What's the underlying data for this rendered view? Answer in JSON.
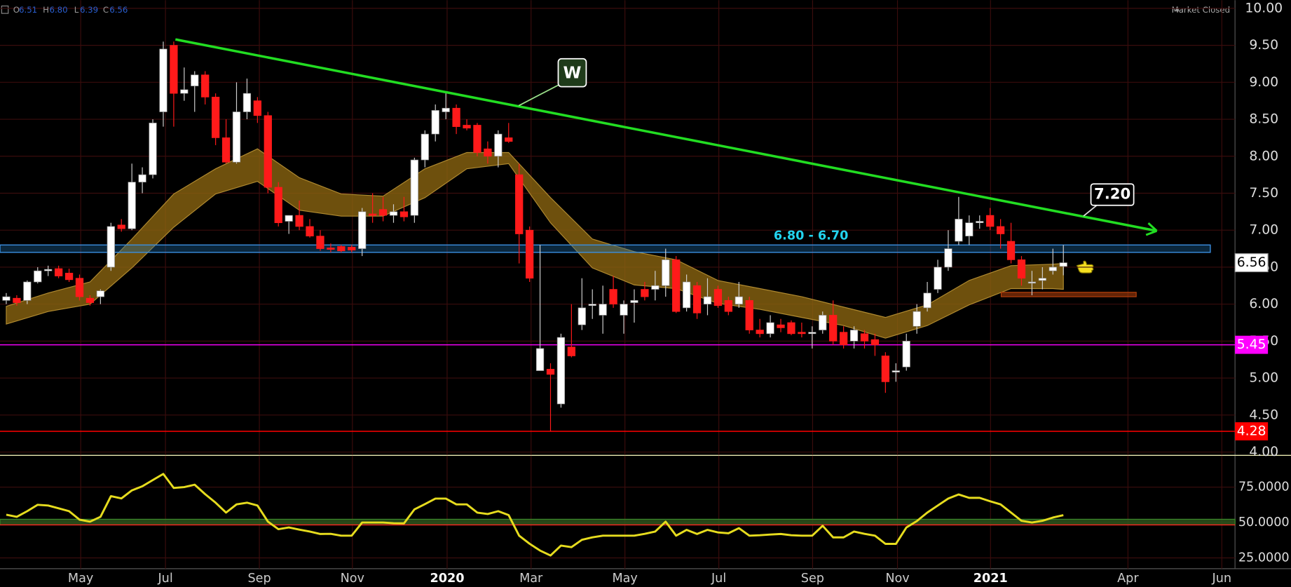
{
  "status": "Market Closed",
  "ohlc_legend": [
    {
      "key": "O",
      "value": "6.51"
    },
    {
      "key": "H",
      "value": "6.80"
    },
    {
      "key": "L",
      "value": "6.39"
    },
    {
      "key": "C",
      "value": "6.56"
    }
  ],
  "chart_data": [
    {
      "type": "candlestick",
      "open": [
        6.05,
        6.08,
        6.05,
        6.3,
        6.45,
        6.48,
        6.42,
        6.35,
        6.08,
        6.1,
        6.5,
        7.07,
        7.02,
        7.65,
        7.75,
        8.6,
        9.5,
        8.85,
        8.95,
        9.1,
        8.8,
        8.25,
        7.92,
        8.6,
        8.75,
        8.55,
        7.58,
        7.12,
        7.2,
        7.05,
        6.92,
        6.76,
        6.78,
        6.77,
        6.75,
        7.22,
        7.28,
        7.2,
        7.25,
        7.2,
        7.95,
        8.3,
        8.6,
        8.65,
        8.42,
        8.42,
        8.1,
        8.0,
        8.25,
        7.75,
        7.0,
        5.1,
        5.12,
        4.65,
        5.42,
        5.72,
        5.98,
        5.85,
        6.2,
        5.85,
        6.02,
        6.2,
        6.2,
        6.25,
        6.6,
        5.95,
        6.25,
        6.0,
        6.2,
        6.05,
        6.0,
        6.05,
        5.65,
        5.6,
        5.72,
        5.75,
        5.62,
        5.6,
        5.65,
        5.85,
        5.62,
        5.5,
        5.6,
        5.52,
        5.3,
        5.08,
        5.15,
        5.7,
        5.95,
        6.2,
        6.5,
        6.85,
        6.92,
        7.1,
        7.2,
        7.05,
        6.85,
        6.6,
        6.3,
        6.32,
        6.45,
        6.51
      ],
      "high": [
        6.15,
        6.12,
        6.32,
        6.5,
        6.52,
        6.52,
        6.48,
        6.4,
        6.12,
        6.2,
        7.1,
        7.15,
        7.9,
        7.85,
        8.5,
        9.55,
        9.55,
        9.2,
        9.15,
        9.15,
        8.85,
        8.5,
        9.0,
        9.05,
        8.8,
        8.6,
        7.65,
        7.2,
        7.4,
        7.15,
        7.0,
        6.82,
        6.8,
        6.8,
        7.3,
        7.5,
        7.45,
        7.35,
        7.45,
        7.98,
        8.35,
        8.7,
        8.85,
        8.7,
        8.5,
        8.45,
        8.2,
        8.35,
        8.45,
        7.9,
        7.05,
        6.8,
        5.2,
        5.6,
        6.0,
        6.35,
        6.2,
        6.25,
        6.38,
        6.05,
        6.2,
        6.3,
        6.45,
        6.75,
        6.65,
        6.4,
        6.3,
        6.35,
        6.25,
        6.1,
        6.3,
        6.1,
        5.8,
        5.85,
        5.8,
        5.78,
        5.75,
        5.7,
        5.9,
        6.05,
        5.7,
        5.7,
        5.65,
        5.6,
        5.35,
        5.2,
        5.6,
        6.0,
        6.3,
        6.6,
        7.0,
        7.45,
        7.2,
        7.2,
        7.3,
        7.15,
        7.1,
        6.65,
        6.45,
        6.5,
        6.75,
        6.8
      ],
      "low": [
        6.0,
        5.98,
        6.0,
        6.28,
        6.38,
        6.35,
        6.3,
        6.05,
        5.98,
        6.0,
        6.45,
        6.98,
        7.0,
        7.5,
        7.7,
        8.4,
        8.4,
        8.75,
        8.6,
        8.7,
        8.15,
        7.9,
        7.9,
        8.5,
        8.45,
        7.5,
        7.05,
        6.95,
        7.0,
        6.9,
        6.72,
        6.7,
        6.7,
        6.7,
        6.65,
        7.1,
        7.12,
        7.1,
        7.12,
        7.1,
        7.85,
        8.2,
        8.5,
        8.3,
        8.35,
        8.0,
        7.9,
        7.85,
        8.18,
        6.55,
        6.3,
        5.1,
        4.28,
        4.6,
        5.28,
        5.65,
        5.8,
        5.6,
        5.95,
        5.6,
        5.75,
        6.05,
        6.05,
        6.1,
        5.88,
        5.9,
        5.8,
        5.85,
        5.95,
        5.85,
        5.95,
        5.6,
        5.55,
        5.55,
        5.62,
        5.58,
        5.55,
        5.4,
        5.6,
        5.45,
        5.4,
        5.4,
        5.4,
        5.3,
        4.8,
        4.95,
        5.1,
        5.6,
        5.9,
        6.15,
        6.45,
        6.8,
        6.8,
        7.02,
        7.0,
        6.75,
        6.55,
        6.25,
        6.12,
        6.2,
        6.4,
        6.39
      ],
      "close": [
        6.1,
        6.02,
        6.3,
        6.45,
        6.47,
        6.38,
        6.33,
        6.1,
        6.02,
        6.18,
        7.05,
        7.02,
        7.65,
        7.75,
        8.45,
        9.45,
        8.85,
        8.9,
        9.1,
        8.8,
        8.25,
        7.92,
        8.6,
        8.85,
        8.55,
        7.58,
        7.1,
        7.2,
        7.05,
        6.92,
        6.75,
        6.74,
        6.72,
        6.73,
        7.25,
        7.2,
        7.2,
        7.25,
        7.18,
        7.95,
        8.3,
        8.62,
        8.65,
        8.4,
        8.38,
        8.05,
        8.0,
        8.3,
        8.2,
        6.95,
        6.35,
        5.4,
        5.05,
        5.55,
        5.3,
        5.95,
        6.0,
        6.0,
        6.0,
        6.0,
        6.05,
        6.1,
        6.25,
        6.6,
        5.9,
        6.3,
        5.88,
        6.1,
        5.98,
        5.9,
        6.1,
        5.65,
        5.6,
        5.75,
        5.68,
        5.6,
        5.6,
        5.62,
        5.85,
        5.5,
        5.45,
        5.65,
        5.5,
        5.45,
        4.95,
        5.1,
        5.5,
        5.9,
        6.15,
        6.5,
        6.75,
        7.15,
        7.1,
        7.12,
        7.05,
        6.95,
        6.6,
        6.35,
        6.3,
        6.35,
        6.5,
        6.56
      ],
      "up_color": "#ffffff",
      "down_color": "#ff1a1a",
      "xlim": [
        -0.6,
        117.4
      ],
      "xticks": [
        {
          "value": 7.11,
          "label": "May"
        },
        {
          "value": 15.21,
          "label": "Jul"
        },
        {
          "value": 24.18,
          "label": "Sep"
        },
        {
          "value": 33.07,
          "label": "Nov"
        },
        {
          "value": 42.12,
          "label": "2020"
        },
        {
          "value": 50.14,
          "label": "Mar"
        },
        {
          "value": 59.11,
          "label": "May"
        },
        {
          "value": 68.08,
          "label": "Jul"
        },
        {
          "value": 77.04,
          "label": "Sep"
        },
        {
          "value": 85.15,
          "label": "Nov"
        },
        {
          "value": 94.04,
          "label": "2021"
        },
        {
          "value": 107.17,
          "label": "Apr"
        },
        {
          "value": 116.14,
          "label": "Jun"
        }
      ],
      "ylim": [
        3.96,
        10.11
      ],
      "yticks": [
        {
          "value": 4,
          "label": "4.00"
        },
        {
          "value": 4.5,
          "label": "4.50"
        },
        {
          "value": 5,
          "label": "5.00"
        },
        {
          "value": 5.5,
          "label": "5.50"
        },
        {
          "value": 6,
          "label": "6.00"
        },
        {
          "value": 6.5,
          "label": "6.50"
        },
        {
          "value": 7,
          "label": "7.00"
        },
        {
          "value": 7.5,
          "label": "7.50"
        },
        {
          "value": 8,
          "label": "8.00"
        },
        {
          "value": 8.5,
          "label": "8.50"
        },
        {
          "value": 9,
          "label": "9.00"
        },
        {
          "value": 9.5,
          "label": "9.50"
        },
        {
          "value": 10,
          "label": "10.00"
        }
      ],
      "grid": true,
      "grid_color": "#3a0c0c",
      "band": {
        "x": [
          0,
          4,
          8,
          12,
          16,
          20,
          24,
          28,
          32,
          36,
          40,
          44,
          48,
          52,
          56,
          60,
          64,
          68,
          72,
          76,
          80,
          84,
          88,
          92,
          96,
          100,
          101
        ],
        "upper": [
          5.97,
          6.15,
          6.3,
          6.88,
          7.49,
          7.83,
          8.1,
          7.71,
          7.49,
          7.46,
          7.83,
          8.05,
          8.05,
          7.44,
          6.88,
          6.71,
          6.6,
          6.32,
          6.21,
          6.1,
          5.96,
          5.82,
          5.99,
          6.32,
          6.52,
          6.54,
          6.55
        ],
        "lower": [
          5.73,
          5.9,
          6.0,
          6.49,
          7.04,
          7.49,
          7.66,
          7.27,
          7.19,
          7.19,
          7.44,
          7.83,
          7.9,
          7.1,
          6.49,
          6.26,
          6.21,
          6.01,
          5.93,
          5.82,
          5.71,
          5.54,
          5.71,
          5.99,
          6.21,
          6.21,
          6.2
        ],
        "color": "#8a6410"
      },
      "hlines": [
        {
          "value": 5.45,
          "color": "#ff00ff"
        },
        {
          "value": 4.28,
          "color": "#ff0000"
        }
      ],
      "last_price": 6.56,
      "zone": {
        "label": "6.80 - 6.70",
        "ylim": [
          6.7,
          6.8
        ],
        "xlim": [
          -0.6,
          115.04
        ],
        "color": "#1e6fb0",
        "label_color": "#22d3ee"
      },
      "support_box": {
        "ylim": [
          6.1,
          6.16
        ],
        "xlim": [
          95.06,
          107.96
        ],
        "color": "#b5400b"
      },
      "trendline": {
        "x": [
          16.16,
          109.93
        ],
        "y": [
          9.58,
          6.99
        ],
        "color": "#22dd22"
      },
      "callouts": [
        "W",
        "7.20"
      ]
    },
    {
      "type": "line",
      "values": [
        55.5,
        54,
        58,
        62.5,
        62,
        60,
        58,
        52,
        50.6,
        54,
        68.6,
        67,
        72.7,
        75.6,
        80,
        84.3,
        74.4,
        75,
        76.7,
        70,
        64,
        57,
        62.8,
        64,
        62,
        50.6,
        45.3,
        46.5,
        45,
        43.6,
        41.9,
        42,
        40.7,
        40.7,
        50,
        50,
        50,
        49.5,
        49.4,
        59.3,
        63,
        66.9,
        66.9,
        62.8,
        62.8,
        57,
        56,
        58,
        55.2,
        40.7,
        35,
        30.2,
        26.7,
        33.7,
        32.6,
        37.8,
        39.5,
        40.7,
        40.7,
        40.7,
        40.7,
        42,
        43.6,
        50.6,
        40.7,
        44.8,
        41.9,
        44.8,
        43,
        42.4,
        46,
        40.7,
        41,
        41.5,
        41.9,
        41,
        40.7,
        40.7,
        47.7,
        39.5,
        39.5,
        43.6,
        42,
        40.7,
        34.9,
        34.9,
        46.5,
        51,
        57,
        62,
        66.9,
        69.8,
        67.4,
        67.4,
        65,
        62.8,
        57,
        51.2,
        50,
        51.2,
        53.5,
        55.2
      ],
      "color": "#e6dc1e",
      "xlim": [
        -0.6,
        117.4
      ],
      "ylim": [
        17.4,
        97.1
      ],
      "yticks": [
        {
          "value": 25,
          "label": "25.0000"
        },
        {
          "value": 50,
          "label": "50.0000"
        },
        {
          "value": 75,
          "label": "75.0000"
        }
      ],
      "grid": true,
      "grid_color": "#3a0c0c",
      "bands": [
        {
          "ylim": [
            48.3,
            52.3
          ],
          "color": "#2e5a1e"
        }
      ],
      "hlines": [
        {
          "value": 48.3,
          "color": "#ff2020"
        }
      ]
    }
  ]
}
